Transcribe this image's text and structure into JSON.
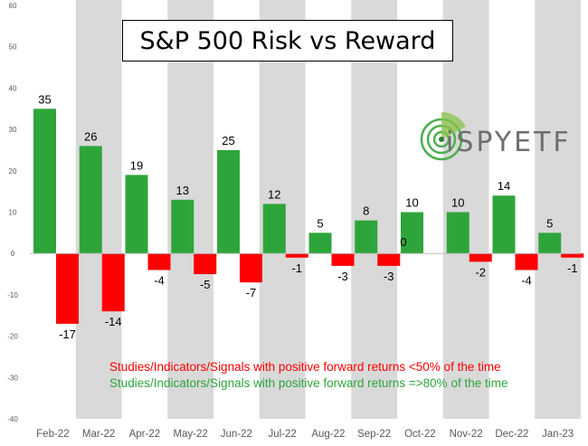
{
  "chart_data": {
    "type": "bar",
    "title": "S&P 500 Risk vs Reward",
    "categories": [
      "Feb-22",
      "Mar-22",
      "Apr-22",
      "May-22",
      "Jun-22",
      "Jul-22",
      "Aug-22",
      "Sep-22",
      "Oct-22",
      "Nov-22",
      "Dec-22",
      "Jan-23"
    ],
    "series": [
      {
        "name": "Studies/Indicators/Signals with positive forward returns =>80% of the time",
        "color": "#2ea53a",
        "values": [
          35,
          26,
          19,
          13,
          25,
          12,
          5,
          8,
          10,
          10,
          14,
          5
        ],
        "labels": [
          "35",
          "26",
          "19",
          "13",
          "25",
          "12",
          "5",
          "8",
          "10",
          "10",
          "14",
          "5"
        ]
      },
      {
        "name": "Studies/Indicators/Signals with positive forward returns <50% of the time",
        "color": "#ff0000",
        "values": [
          -17,
          -14,
          -4,
          -5,
          -7,
          -1,
          -3,
          -3,
          0,
          -2,
          -4,
          -1
        ],
        "labels": [
          "-17",
          "-14",
          "-4",
          "-5",
          "-7",
          "-1",
          "-3",
          "-3",
          "0",
          "-2",
          "-4",
          "-1"
        ]
      }
    ],
    "ylim": [
      -40,
      60
    ],
    "yticks": [
      "-40",
      "-30",
      "-20",
      "-10",
      "0",
      "10",
      "20",
      "30",
      "40",
      "50",
      "60"
    ],
    "xlabel": "",
    "ylabel": "",
    "grid": false,
    "alternating_column_shading": "#d9d9d9",
    "legend_placement": "bottom-right"
  },
  "legend": {
    "red_text": "Studies/Indicators/Signals with positive forward returns <50% of the time",
    "green_text": "Studies/Indicators/Signals with positive forward returns =>80% of the time",
    "red_color": "#ff0000",
    "green_color": "#2ea53a"
  },
  "logo": {
    "text": "iSPYETF",
    "icon": "radar-sweep-icon"
  }
}
